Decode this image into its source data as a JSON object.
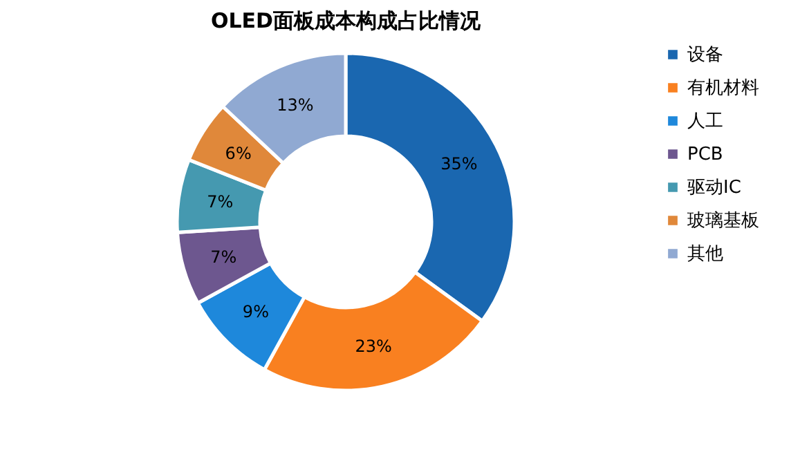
{
  "chart_data": {
    "type": "donut",
    "title": "OLED面板成本构成占比情况",
    "categories": [
      "设备",
      "有机材料",
      "人工",
      "PCB",
      "驱动IC",
      "玻璃基板",
      "其他"
    ],
    "values": [
      35,
      23,
      9,
      7,
      7,
      6,
      13
    ],
    "colors": [
      "#1a67b0",
      "#f98020",
      "#1e88db",
      "#6d578f",
      "#4599b0",
      "#e0883a",
      "#90a9d2"
    ],
    "value_labels": [
      "35%",
      "23%",
      "9%",
      "7%",
      "7%",
      "6%",
      "13%"
    ],
    "legend": "right"
  }
}
